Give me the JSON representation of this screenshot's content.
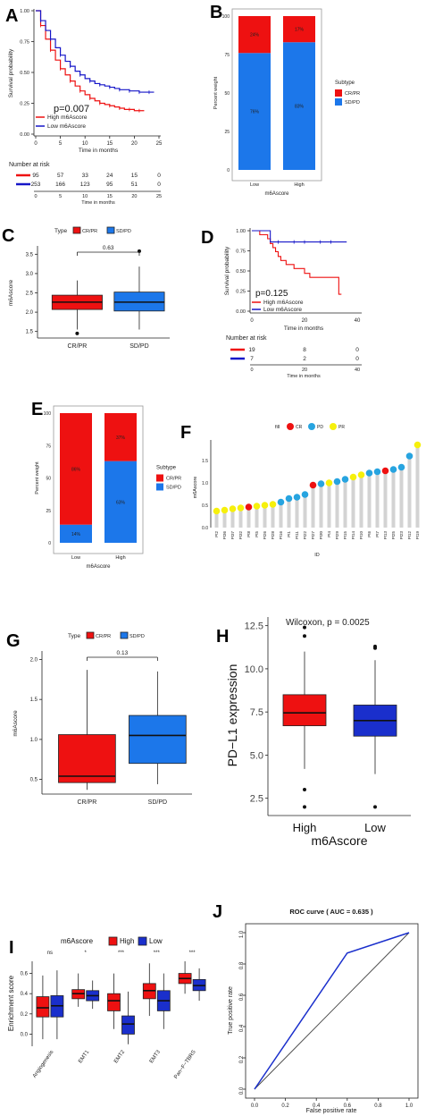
{
  "colors": {
    "red": "#ee1111",
    "blue": "#1616c8",
    "lightblue": "#1c77ea",
    "navy": "#1a2fcc",
    "grey": "#d3d3d3",
    "yellow": "#f6f00c",
    "cyan": "#27a4e0"
  },
  "panels": {
    "A": "A",
    "B": "B",
    "C": "C",
    "D": "D",
    "E": "E",
    "F": "F",
    "G": "G",
    "H": "H",
    "I": "I",
    "J": "J"
  },
  "chart_data": [
    {
      "id": "A",
      "type": "line",
      "ylabel": "Survival probability",
      "xlabel": "Time in months",
      "x_ticks": [
        "0",
        "5",
        "10",
        "15",
        "20",
        "25"
      ],
      "y_ticks": [
        "0.00",
        "0.25",
        "0.50",
        "0.75",
        "1.00"
      ],
      "xlim": [
        0,
        25
      ],
      "ylim": [
        0,
        1
      ],
      "pvalue": "p=0.007",
      "series": [
        {
          "name": "High m6Ascore",
          "color": "#ee1111",
          "x": [
            0,
            1,
            2,
            3,
            4,
            5,
            6,
            7,
            8,
            9,
            10,
            11,
            12,
            13,
            14,
            15,
            16,
            17,
            18,
            19,
            20,
            21,
            22
          ],
          "y": [
            1,
            0.88,
            0.77,
            0.68,
            0.6,
            0.53,
            0.48,
            0.43,
            0.39,
            0.35,
            0.32,
            0.29,
            0.27,
            0.25,
            0.24,
            0.23,
            0.22,
            0.21,
            0.2,
            0.2,
            0.19,
            0.19,
            0.19
          ]
        },
        {
          "name": "Low m6Ascore",
          "color": "#1616c8",
          "x": [
            0,
            1,
            2,
            3,
            4,
            5,
            6,
            7,
            8,
            9,
            10,
            11,
            12,
            13,
            14,
            15,
            16,
            17,
            18,
            19,
            20,
            21,
            22,
            23,
            24
          ],
          "y": [
            1,
            0.92,
            0.84,
            0.77,
            0.7,
            0.64,
            0.59,
            0.55,
            0.51,
            0.48,
            0.45,
            0.43,
            0.41,
            0.4,
            0.39,
            0.38,
            0.37,
            0.36,
            0.36,
            0.35,
            0.35,
            0.34,
            0.34,
            0.34,
            0.34
          ]
        }
      ],
      "risk": {
        "title": "Number at risk",
        "rows": [
          [
            "95",
            "57",
            "33",
            "24",
            "15",
            "0"
          ],
          [
            "253",
            "166",
            "123",
            "95",
            "51",
            "0"
          ]
        ],
        "xlabel": "Time in months"
      }
    },
    {
      "id": "B",
      "type": "bar",
      "categories": [
        "Low",
        "High"
      ],
      "xlabel": "m6Ascore",
      "ylabel": "Percent weight",
      "y_ticks": [
        "0",
        "25",
        "50",
        "75",
        "100"
      ],
      "series": [
        {
          "name": "SD/PD",
          "values": [
            76,
            83
          ],
          "labels": [
            "76%",
            "83%"
          ]
        },
        {
          "name": "CR/PR",
          "values": [
            24,
            17
          ],
          "labels": [
            "24%",
            "17%"
          ]
        }
      ],
      "legend": {
        "title": "Subtype",
        "items": [
          "CR/PR",
          "SD/PD"
        ]
      }
    },
    {
      "id": "C",
      "type": "box",
      "categories": [
        "CR/PR",
        "SD/PD"
      ],
      "ylabel": "m6Ascore",
      "y_ticks": [
        "1.5",
        "2.0",
        "2.5",
        "3.0",
        "3.5"
      ],
      "legend": {
        "title": "Type",
        "items": [
          "CR/PR",
          "SD/PD"
        ]
      },
      "pvalue": "0.63",
      "boxes": [
        {
          "q1": 2.07,
          "med": 2.26,
          "q3": 2.44,
          "lo": 1.55,
          "hi": 2.82,
          "out": [
            1.45
          ]
        },
        {
          "q1": 2.03,
          "med": 2.26,
          "q3": 2.52,
          "lo": 1.55,
          "hi": 3.18,
          "out": [
            3.58
          ]
        }
      ]
    },
    {
      "id": "D",
      "type": "line",
      "ylabel": "Survival probability",
      "xlabel": "Time in months",
      "x_ticks": [
        "0",
        "20",
        "40"
      ],
      "y_ticks": [
        "0.00",
        "0.25",
        "0.50",
        "0.75",
        "1.00"
      ],
      "pvalue": "p=0.125",
      "series": [
        {
          "name": "High m6Ascore",
          "color": "#ee1111"
        },
        {
          "name": "Low m6Ascore",
          "color": "#1616c8"
        }
      ],
      "risk": {
        "title": "Number at risk",
        "rows": [
          [
            "19",
            "8",
            "0"
          ],
          [
            "7",
            "2",
            "0"
          ]
        ],
        "xlabel": "Time in months"
      }
    },
    {
      "id": "E",
      "type": "bar",
      "categories": [
        "Low",
        "High"
      ],
      "xlabel": "m6Ascore",
      "ylabel": "Percent weight",
      "y_ticks": [
        "0",
        "25",
        "50",
        "75",
        "100"
      ],
      "series": [
        {
          "name": "SD/PD",
          "values": [
            14,
            63
          ],
          "labels": [
            "14%",
            "63%"
          ]
        },
        {
          "name": "CR/PR",
          "values": [
            86,
            37
          ],
          "labels": [
            "86%",
            "37%"
          ]
        }
      ],
      "legend": {
        "title": "Subtype",
        "items": [
          "CR/PR",
          "SD/PD"
        ]
      }
    },
    {
      "id": "F",
      "type": "scatter",
      "xlabel": "ID",
      "ylabel": "m6Ascore",
      "y_ticks": [
        "0.0",
        "0.5",
        "1.0",
        "1.5"
      ],
      "legend": {
        "title": "fill",
        "items": [
          "CR",
          "PD",
          "PR"
        ]
      },
      "ids": [
        "Pt2",
        "Pt36",
        "Pt37",
        "Pt32",
        "Pt8",
        "Pt5",
        "Pt26",
        "Pt28",
        "Pt16",
        "Pt1",
        "Pt11",
        "Pt22",
        "Pt27",
        "Pt30",
        "Pt4",
        "Pt29",
        "Pt15",
        "Pt14",
        "Pt10",
        "Pt6",
        "Pt7",
        "Pt13",
        "Pt25",
        "Pt23",
        "Pt12",
        "Pt19"
      ],
      "values": [
        0.37,
        0.39,
        0.42,
        0.44,
        0.46,
        0.48,
        0.5,
        0.52,
        0.57,
        0.65,
        0.68,
        0.74,
        0.95,
        0.98,
        1.0,
        1.03,
        1.08,
        1.13,
        1.18,
        1.22,
        1.25,
        1.27,
        1.3,
        1.35,
        1.6,
        1.85
      ],
      "groups": [
        "PR",
        "PR",
        "PR",
        "PR",
        "CR",
        "PR",
        "PR",
        "PR",
        "PD",
        "PD",
        "PD",
        "PD",
        "CR",
        "PD",
        "PR",
        "PD",
        "PD",
        "PR",
        "PR",
        "PD",
        "PD",
        "CR",
        "PD",
        "PD",
        "PD",
        "PR"
      ]
    },
    {
      "id": "G",
      "type": "box",
      "categories": [
        "CR/PR",
        "SD/PD"
      ],
      "ylabel": "m6Ascore",
      "y_ticks": [
        "0.5",
        "1.0",
        "1.5",
        "2.0"
      ],
      "legend": {
        "title": "Type",
        "items": [
          "CR/PR",
          "SD/PD"
        ]
      },
      "pvalue": "0.13",
      "boxes": [
        {
          "q1": 0.46,
          "med": 0.54,
          "q3": 1.06,
          "lo": 0.37,
          "hi": 1.87
        },
        {
          "q1": 0.7,
          "med": 1.05,
          "q3": 1.3,
          "lo": 0.44,
          "hi": 1.85
        }
      ]
    },
    {
      "id": "H",
      "type": "box",
      "categories": [
        "High",
        "Low"
      ],
      "xlabel": "m6Ascore",
      "ylabel": "PD−L1 expression",
      "y_ticks": [
        "2.5",
        "5.0",
        "7.5",
        "10.0",
        "12.5"
      ],
      "annotation": "Wilcoxon, p = 0.0025",
      "boxes": [
        {
          "q1": 6.7,
          "med": 7.45,
          "q3": 8.5,
          "lo": 4.2,
          "hi": 11.0,
          "out": [
            12.4,
            11.9,
            3.0,
            2.0
          ]
        },
        {
          "q1": 6.1,
          "med": 7.0,
          "q3": 7.9,
          "lo": 3.9,
          "hi": 10.5,
          "out": [
            11.3,
            11.2,
            2.0
          ]
        }
      ]
    },
    {
      "id": "I",
      "type": "box",
      "categories": [
        "Angiogenesis",
        "EMT1",
        "EMT2",
        "EMT3",
        "Pan−F−TBRS"
      ],
      "ylabel": "Enrichment score",
      "y_ticks": [
        "0.0",
        "0.2",
        "0.4",
        "0.6"
      ],
      "legend": {
        "title": "m6Ascore",
        "items": [
          "High",
          "Low"
        ]
      },
      "significance": [
        "ns",
        "*",
        "***",
        "***",
        "***"
      ],
      "boxes": [
        [
          {
            "q1": 0.17,
            "med": 0.26,
            "q3": 0.37,
            "lo": -0.05,
            "hi": 0.58
          },
          {
            "q1": 0.17,
            "med": 0.28,
            "q3": 0.38,
            "lo": -0.05,
            "hi": 0.63
          }
        ],
        [
          {
            "q1": 0.35,
            "med": 0.4,
            "q3": 0.44,
            "lo": 0.27,
            "hi": 0.6
          },
          {
            "q1": 0.33,
            "med": 0.38,
            "q3": 0.43,
            "lo": 0.25,
            "hi": 0.53
          }
        ],
        [
          {
            "q1": 0.23,
            "med": 0.33,
            "q3": 0.4,
            "lo": 0.05,
            "hi": 0.6
          },
          {
            "q1": 0.0,
            "med": 0.1,
            "q3": 0.18,
            "lo": -0.1,
            "hi": 0.42
          }
        ],
        [
          {
            "q1": 0.35,
            "med": 0.43,
            "q3": 0.5,
            "lo": 0.18,
            "hi": 0.7
          },
          {
            "q1": 0.23,
            "med": 0.33,
            "q3": 0.43,
            "lo": 0.05,
            "hi": 0.6
          }
        ],
        [
          {
            "q1": 0.5,
            "med": 0.55,
            "q3": 0.6,
            "lo": 0.4,
            "hi": 0.72
          },
          {
            "q1": 0.43,
            "med": 0.48,
            "q3": 0.54,
            "lo": 0.33,
            "hi": 0.65
          }
        ]
      ]
    },
    {
      "id": "J",
      "type": "line",
      "title": "ROC curve ( AUC =  0.635 )",
      "xlabel": "False positive rate",
      "ylabel": "True positive rate",
      "x_ticks": [
        "0.0",
        "0.2",
        "0.4",
        "0.6",
        "0.8",
        "1.0"
      ],
      "y_ticks": [
        "0.0",
        "0.2",
        "0.4",
        "0.6",
        "0.8",
        "1.0"
      ],
      "x": [
        0,
        0.6,
        1
      ],
      "y": [
        0,
        0.87,
        1
      ]
    }
  ]
}
